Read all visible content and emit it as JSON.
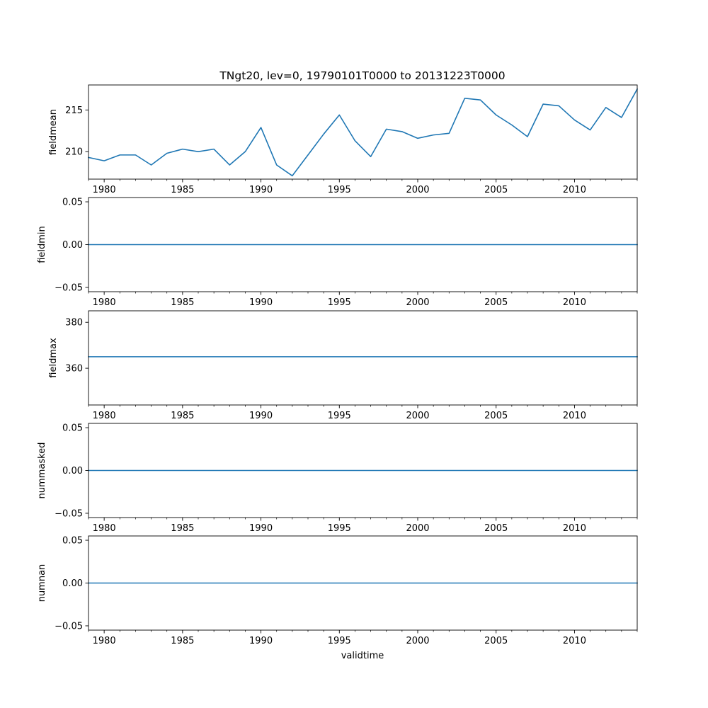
{
  "figure": {
    "title": "TNgt20, lev=0, 19790101T0000 to 20131223T0000",
    "xlabel": "validtime"
  },
  "chart_data": [
    {
      "type": "line",
      "ylabel": "fieldmean",
      "xlim": [
        1979,
        2014
      ],
      "ylim": [
        206.7,
        218.0
      ],
      "xticks": [
        1980,
        1985,
        1990,
        1995,
        2000,
        2005,
        2010
      ],
      "yticks": [
        210,
        215
      ],
      "series": [
        {
          "color": "#1f77b4",
          "x": [
            1979,
            1980,
            1981,
            1982,
            1983,
            1984,
            1985,
            1986,
            1987,
            1988,
            1989,
            1990,
            1991,
            1992,
            1993,
            1994,
            1995,
            1996,
            1997,
            1998,
            1999,
            2000,
            2001,
            2002,
            2003,
            2004,
            2005,
            2006,
            2007,
            2008,
            2009,
            2010,
            2011,
            2012,
            2013,
            2014
          ],
          "y": [
            209.3,
            208.9,
            209.6,
            209.6,
            208.4,
            209.8,
            210.3,
            210.0,
            210.3,
            208.4,
            210.0,
            212.9,
            208.4,
            207.1,
            209.6,
            212.1,
            214.4,
            211.3,
            209.4,
            212.7,
            212.4,
            211.6,
            212.0,
            212.2,
            216.4,
            216.2,
            214.4,
            213.2,
            211.8,
            215.7,
            215.5,
            213.8,
            212.6,
            215.3,
            214.1,
            217.5
          ]
        }
      ]
    },
    {
      "type": "line",
      "ylabel": "fieldmin",
      "xlim": [
        1979,
        2014
      ],
      "ylim": [
        -0.055,
        0.055
      ],
      "xticks": [
        1980,
        1985,
        1990,
        1995,
        2000,
        2005,
        2010
      ],
      "yticks": [
        -0.05,
        0.0,
        0.05
      ],
      "ytick_labels": [
        "−0.05",
        "0.00",
        "0.05"
      ],
      "series": [
        {
          "color": "#1f77b4",
          "x": [
            1979,
            2014
          ],
          "y": [
            0,
            0
          ]
        }
      ]
    },
    {
      "type": "line",
      "ylabel": "fieldmax",
      "xlim": [
        1979,
        2014
      ],
      "ylim": [
        344,
        385
      ],
      "xticks": [
        1980,
        1985,
        1990,
        1995,
        2000,
        2005,
        2010
      ],
      "yticks": [
        360,
        380
      ],
      "series": [
        {
          "color": "#1f77b4",
          "x": [
            1979,
            2014
          ],
          "y": [
            365,
            365
          ]
        }
      ]
    },
    {
      "type": "line",
      "ylabel": "nummasked",
      "xlim": [
        1979,
        2014
      ],
      "ylim": [
        -0.055,
        0.055
      ],
      "xticks": [
        1980,
        1985,
        1990,
        1995,
        2000,
        2005,
        2010
      ],
      "yticks": [
        -0.05,
        0.0,
        0.05
      ],
      "ytick_labels": [
        "−0.05",
        "0.00",
        "0.05"
      ],
      "series": [
        {
          "color": "#1f77b4",
          "x": [
            1979,
            2014
          ],
          "y": [
            0,
            0
          ]
        }
      ]
    },
    {
      "type": "line",
      "ylabel": "numnan",
      "xlim": [
        1979,
        2014
      ],
      "ylim": [
        -0.055,
        0.055
      ],
      "xticks": [
        1980,
        1985,
        1990,
        1995,
        2000,
        2005,
        2010
      ],
      "yticks": [
        -0.05,
        0.0,
        0.05
      ],
      "ytick_labels": [
        "−0.05",
        "0.00",
        "0.05"
      ],
      "series": [
        {
          "color": "#1f77b4",
          "x": [
            1979,
            2014
          ],
          "y": [
            0,
            0
          ]
        }
      ]
    }
  ]
}
